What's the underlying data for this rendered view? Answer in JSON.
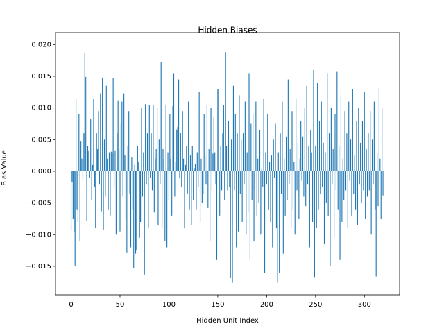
{
  "chart_data": {
    "type": "bar",
    "title": "Hidden Biases",
    "x_label": "Hidden Unit Index",
    "y_label": "Bias Value",
    "color": "#1f77b4",
    "xlim": [
      -16,
      336
    ],
    "ylim": [
      -0.0195,
      0.0219
    ],
    "xticks": [
      0,
      50,
      100,
      150,
      200,
      250,
      300
    ],
    "yticks": [
      {
        "value": -0.015,
        "label": "−0.015"
      },
      {
        "value": -0.01,
        "label": "−0.010"
      },
      {
        "value": -0.005,
        "label": "−0.005"
      },
      {
        "value": 0,
        "label": "0.000"
      },
      {
        "value": 0.005,
        "label": "0.005"
      },
      {
        "value": 0.01,
        "label": "0.010"
      },
      {
        "value": 0.015,
        "label": "0.015"
      },
      {
        "value": 0.02,
        "label": "0.020"
      }
    ],
    "x": [
      0,
      1,
      2,
      3,
      4,
      5,
      6,
      7,
      8,
      9,
      10,
      11,
      12,
      13,
      14,
      15,
      16,
      17,
      18,
      19,
      20,
      21,
      22,
      23,
      24,
      25,
      26,
      27,
      28,
      29,
      30,
      31,
      32,
      33,
      34,
      35,
      36,
      37,
      38,
      39,
      40,
      41,
      42,
      43,
      44,
      45,
      46,
      47,
      48,
      49,
      50,
      51,
      52,
      53,
      54,
      55,
      56,
      57,
      58,
      59,
      60,
      61,
      62,
      63,
      64,
      65,
      66,
      67,
      68,
      69,
      70,
      71,
      72,
      73,
      74,
      75,
      76,
      77,
      78,
      79,
      80,
      81,
      82,
      83,
      84,
      85,
      86,
      87,
      88,
      89,
      90,
      91,
      92,
      93,
      94,
      95,
      96,
      97,
      98,
      99,
      100,
      101,
      102,
      103,
      104,
      105,
      106,
      107,
      108,
      109,
      110,
      111,
      112,
      113,
      114,
      115,
      116,
      117,
      118,
      119,
      120,
      121,
      122,
      123,
      124,
      125,
      126,
      127,
      128,
      129,
      130,
      131,
      132,
      133,
      134,
      135,
      136,
      137,
      138,
      139,
      140,
      141,
      142,
      143,
      144,
      145,
      146,
      147,
      148,
      149,
      150,
      151,
      152,
      153,
      154,
      155,
      156,
      157,
      158,
      159,
      160,
      161,
      162,
      163,
      164,
      165,
      166,
      167,
      168,
      169,
      170,
      171,
      172,
      173,
      174,
      175,
      176,
      177,
      178,
      179,
      180,
      181,
      182,
      183,
      184,
      185,
      186,
      187,
      188,
      189,
      190,
      191,
      192,
      193,
      194,
      195,
      196,
      197,
      198,
      199,
      200,
      201,
      202,
      203,
      204,
      205,
      206,
      207,
      208,
      209,
      210,
      211,
      212,
      213,
      214,
      215,
      216,
      217,
      218,
      219,
      220,
      221,
      222,
      223,
      224,
      225,
      226,
      227,
      228,
      229,
      230,
      231,
      232,
      233,
      234,
      235,
      236,
      237,
      238,
      239,
      240,
      241,
      242,
      243,
      244,
      245,
      246,
      247,
      248,
      249,
      250,
      251,
      252,
      253,
      254,
      255,
      256,
      257,
      258,
      259,
      260,
      261,
      262,
      263,
      264,
      265,
      266,
      267,
      268,
      269,
      270,
      271,
      272,
      273,
      274,
      275,
      276,
      277,
      278,
      279,
      280,
      281,
      282,
      283,
      284,
      285,
      286,
      287,
      288,
      289,
      290,
      291,
      292,
      293,
      294,
      295,
      296,
      297,
      298,
      299,
      300,
      301,
      302,
      303,
      304,
      305,
      306,
      307,
      308,
      309,
      310,
      311,
      312,
      313,
      314,
      315,
      316,
      317,
      318,
      319
    ],
    "values": [
      -0.0094,
      -0.0017,
      -0.0075,
      -0.0095,
      -0.015,
      0.0115,
      -0.006,
      -0.008,
      0.0091,
      -0.011,
      0.0048,
      0.002,
      -0.0012,
      0.006,
      0.0187,
      0.0149,
      -0.0078,
      0.004,
      0.0033,
      -0.001,
      0.0082,
      -0.0045,
      0.001,
      0.0115,
      -0.0025,
      -0.009,
      0.006,
      0.0035,
      0.0095,
      -0.002,
      0.0123,
      -0.0063,
      0.0148,
      -0.0093,
      0.005,
      -0.004,
      0.0135,
      0.002,
      -0.006,
      0.003,
      -0.007,
      0.0031,
      0.003,
      0.0147,
      -0.0025,
      0.0033,
      -0.01,
      0.006,
      0.0112,
      0.0035,
      -0.0095,
      0.0075,
      0.011,
      -0.004,
      0.0123,
      0.0025,
      -0.0075,
      -0.0128,
      0.004,
      0.0095,
      -0.0035,
      -0.012,
      0.0022,
      -0.006,
      -0.0153,
      0.001,
      -0.013,
      -0.0125,
      0.004,
      0.0015,
      -0.0105,
      -0.008,
      0.01,
      -0.004,
      0.003,
      -0.0163,
      0.0106,
      -0.002,
      0.006,
      -0.009,
      0.0104,
      -0.001,
      0.006,
      -0.003,
      0.0105,
      -0.0065,
      0.002,
      0.0035,
      0.01,
      -0.0085,
      0.005,
      -0.002,
      0.0172,
      -0.009,
      0.0035,
      0.002,
      -0.011,
      0.0105,
      -0.012,
      0.003,
      -0.0045,
      0.009,
      0.002,
      -0.007,
      0.0103,
      0.0155,
      -0.004,
      0.0015,
      0.0066,
      0.007,
      0.0145,
      -0.001,
      0.006,
      -0.0025,
      0.0095,
      0.002,
      -0.009,
      0.001,
      0.004,
      -0.0035,
      0.011,
      -0.006,
      0.0025,
      -0.0085,
      0.004,
      -0.0045,
      0.0005,
      0.0012,
      -0.006,
      0.003,
      -0.0025,
      0.0125,
      -0.008,
      0.002,
      -0.005,
      -0.0035,
      0.009,
      0.0025,
      -0.002,
      0.0105,
      -0.0058,
      0.0035,
      -0.011,
      0.01,
      -0.003,
      0.0028,
      0.0085,
      0.003,
      -0.002,
      -0.014,
      0.013,
      0.0129,
      -0.007,
      0.004,
      -0.003,
      0.006,
      0.0105,
      -0.0045,
      0.0188,
      0.004,
      -0.003,
      0.008,
      -0.0025,
      -0.0168,
      0.005,
      -0.0176,
      0.0135,
      -0.003,
      0.009,
      -0.012,
      0.006,
      -0.0095,
      0.012,
      -0.0035,
      0.005,
      -0.008,
      0.006,
      -0.002,
      0.011,
      -0.01,
      0.003,
      -0.0065,
      0.0155,
      -0.014,
      0.0075,
      -0.0045,
      0.009,
      -0.011,
      -0.003,
      0.011,
      -0.007,
      0.002,
      -0.005,
      0.0065,
      -0.01,
      0.0005,
      -0.0025,
      0.0115,
      -0.016,
      0.003,
      -0.002,
      0.009,
      -0.006,
      0.0015,
      -0.008,
      0.0025,
      -0.012,
      0.005,
      -0.001,
      0.0075,
      -0.009,
      -0.0176,
      0.003,
      -0.016,
      0.006,
      -0.0035,
      0.011,
      -0.013,
      0.002,
      -0.007,
      0.0055,
      -0.0045,
      0.0145,
      -0.002,
      0.0035,
      -0.009,
      0.0095,
      -0.006,
      0.0015,
      -0.01,
      0.0115,
      -0.003,
      0.0045,
      -0.0075,
      0.002,
      0.008,
      -0.0015,
      0.0055,
      -0.004,
      0.01,
      -0.0055,
      0.0135,
      -0.002,
      0.004,
      -0.012,
      0.0065,
      0.003,
      -0.008,
      0.016,
      -0.0167,
      0.004,
      -0.009,
      0.014,
      -0.006,
      0.008,
      -0.0035,
      0.011,
      -0.0025,
      0.0045,
      -0.0115,
      0.003,
      -0.005,
      0.0155,
      -0.007,
      0.006,
      -0.0149,
      0.01,
      -0.002,
      0.0035,
      -0.0105,
      0.009,
      -0.003,
      0.0157,
      -0.006,
      0.004,
      -0.014,
      0.012,
      -0.008,
      0.002,
      -0.0045,
      0.0095,
      -0.003,
      0.006,
      -0.009,
      0.011,
      -0.0015,
      0.005,
      -0.007,
      0.013,
      -0.0035,
      0.0025,
      -0.006,
      0.008,
      -0.0085,
      0.01,
      -0.002,
      0.0045,
      -0.005,
      0.008,
      -0.003,
      0.0125,
      -0.0075,
      0.0035,
      -0.004,
      0.006,
      -0.003,
      0.0095,
      -0.01,
      0.005,
      -0.002,
      0.011,
      -0.006,
      -0.0166,
      0.003,
      -0.0055,
      0.0132,
      0.002,
      -0.0075,
      0.01,
      -0.0038
    ]
  }
}
